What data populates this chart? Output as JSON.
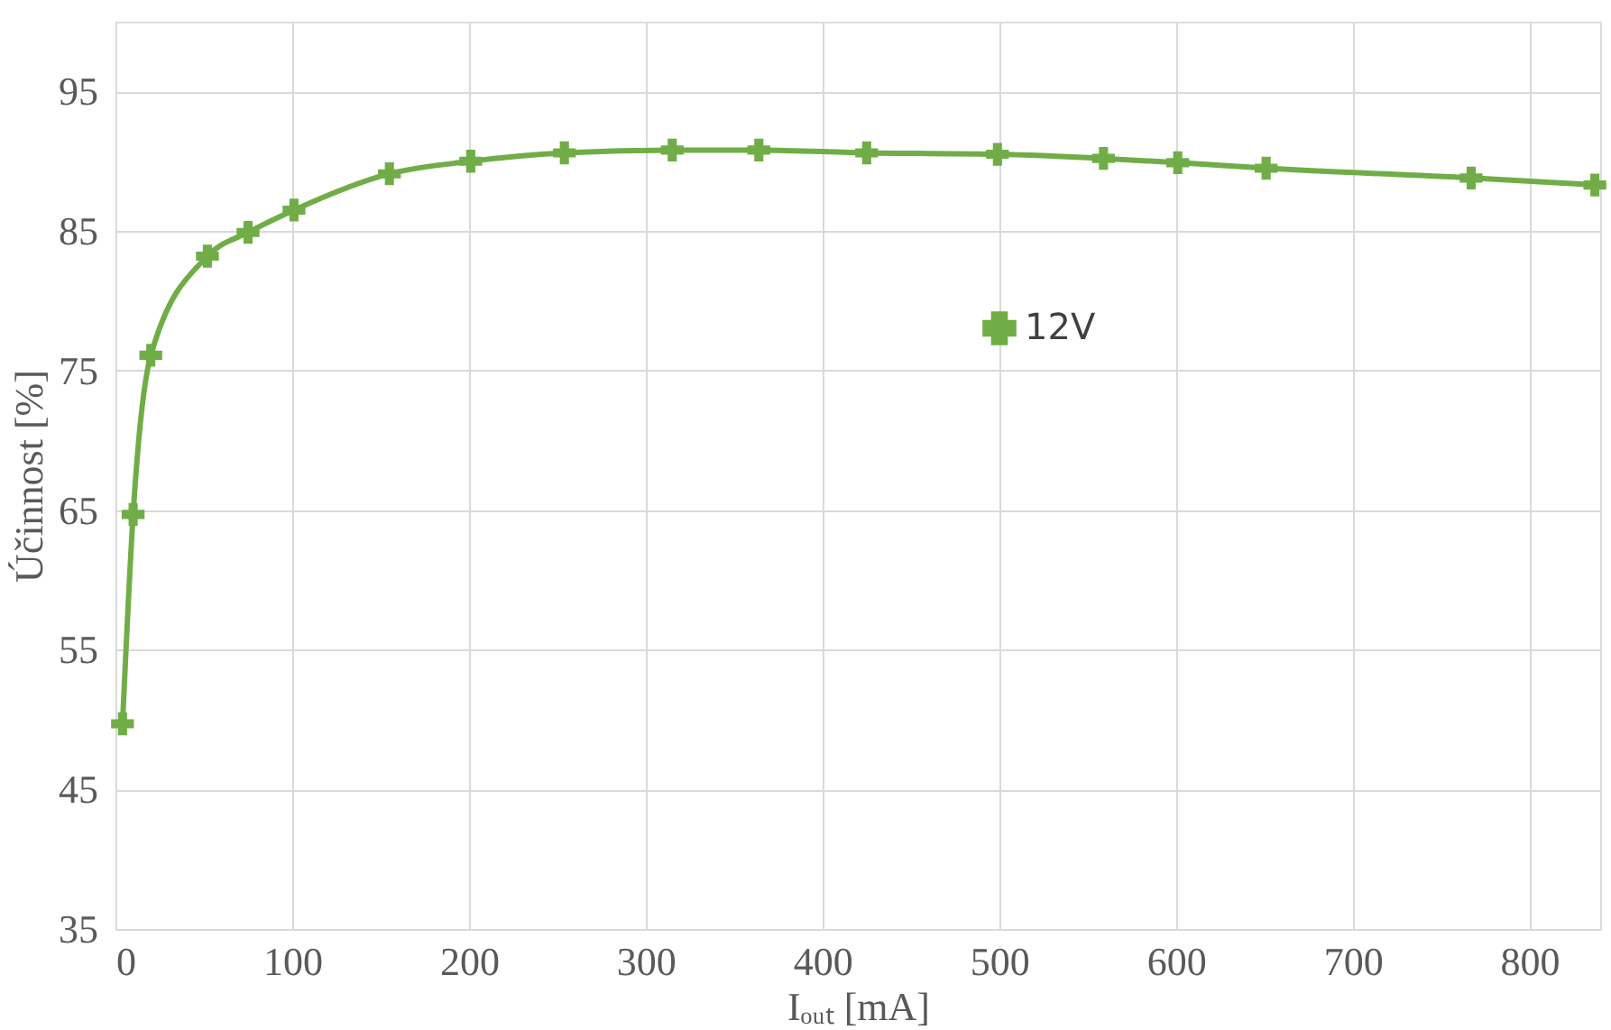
{
  "chart_data": {
    "type": "line",
    "xlabel": "Iₒᵤₜ [mA]",
    "ylabel": "Účinnost [%]",
    "x": [
      4,
      10,
      20,
      52,
      75,
      101,
      155,
      201,
      254,
      315,
      364,
      425,
      499,
      559,
      601,
      651,
      767,
      837
    ],
    "series": [
      {
        "name": "12V",
        "color": "#70ad47",
        "values": [
          49.7,
          64.7,
          76.1,
          83.2,
          84.9,
          86.5,
          89.1,
          90.0,
          90.6,
          90.8,
          90.8,
          90.6,
          90.5,
          90.2,
          89.9,
          89.5,
          88.8,
          88.3
        ]
      }
    ],
    "xlim": [
      0,
      840
    ],
    "xticks": [
      0,
      100,
      200,
      300,
      400,
      500,
      600,
      700,
      800
    ],
    "ylim": [
      35,
      100
    ],
    "yticks": [
      35,
      45,
      55,
      65,
      75,
      85,
      95
    ],
    "grid": true,
    "legend": "right",
    "marker": "cross",
    "line_style": "solid"
  }
}
